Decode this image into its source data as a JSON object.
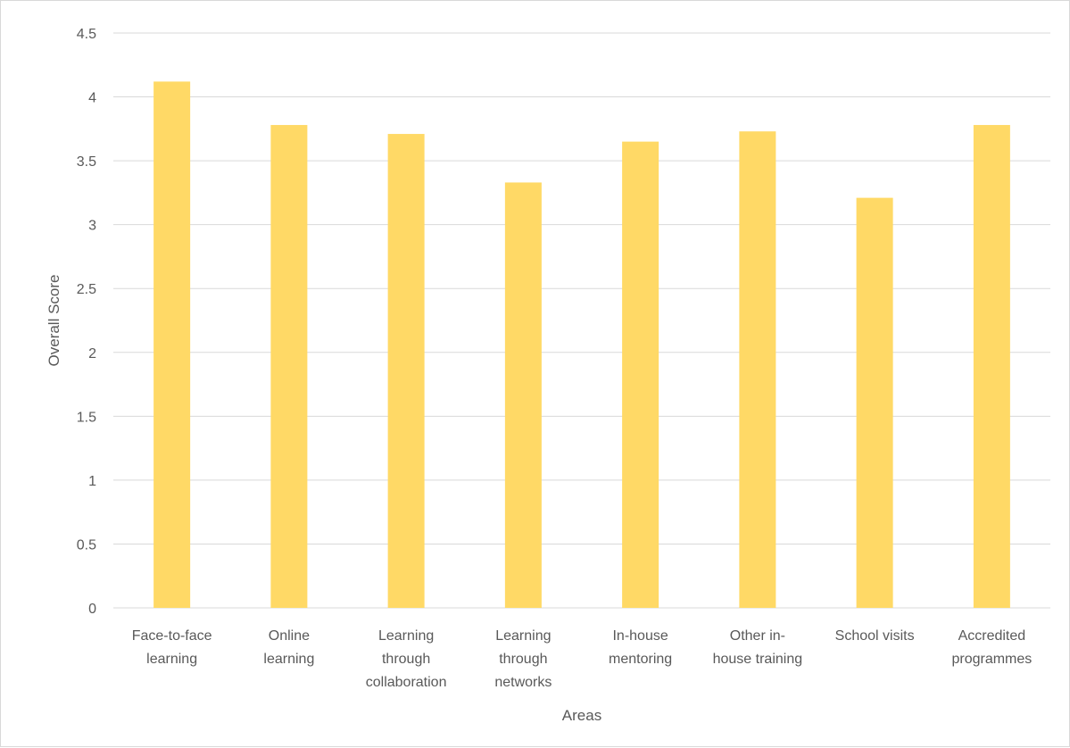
{
  "chart_data": {
    "type": "bar",
    "title": "",
    "xlabel": "Areas",
    "ylabel": "Overall Score",
    "ylim": [
      0,
      4.5
    ],
    "yticks": [
      "0",
      "0.5",
      "1",
      "1.5",
      "2",
      "2.5",
      "3",
      "3.5",
      "4",
      "4.5"
    ],
    "grid": true,
    "legend": "none",
    "categories": [
      [
        "Face-to-face",
        "learning"
      ],
      [
        "Online",
        "learning"
      ],
      [
        "Learning",
        "through",
        "collaboration"
      ],
      [
        "Learning",
        "through",
        "networks"
      ],
      [
        "In-house",
        "mentoring"
      ],
      [
        "Other in-",
        "house training"
      ],
      [
        "School visits"
      ],
      [
        "Accredited",
        "programmes"
      ]
    ],
    "values": [
      4.12,
      3.78,
      3.71,
      3.33,
      3.65,
      3.73,
      3.21,
      3.78
    ],
    "bar_color": "#ffd966",
    "grid_color": "#d9d9d9",
    "text_color": "#595959"
  }
}
